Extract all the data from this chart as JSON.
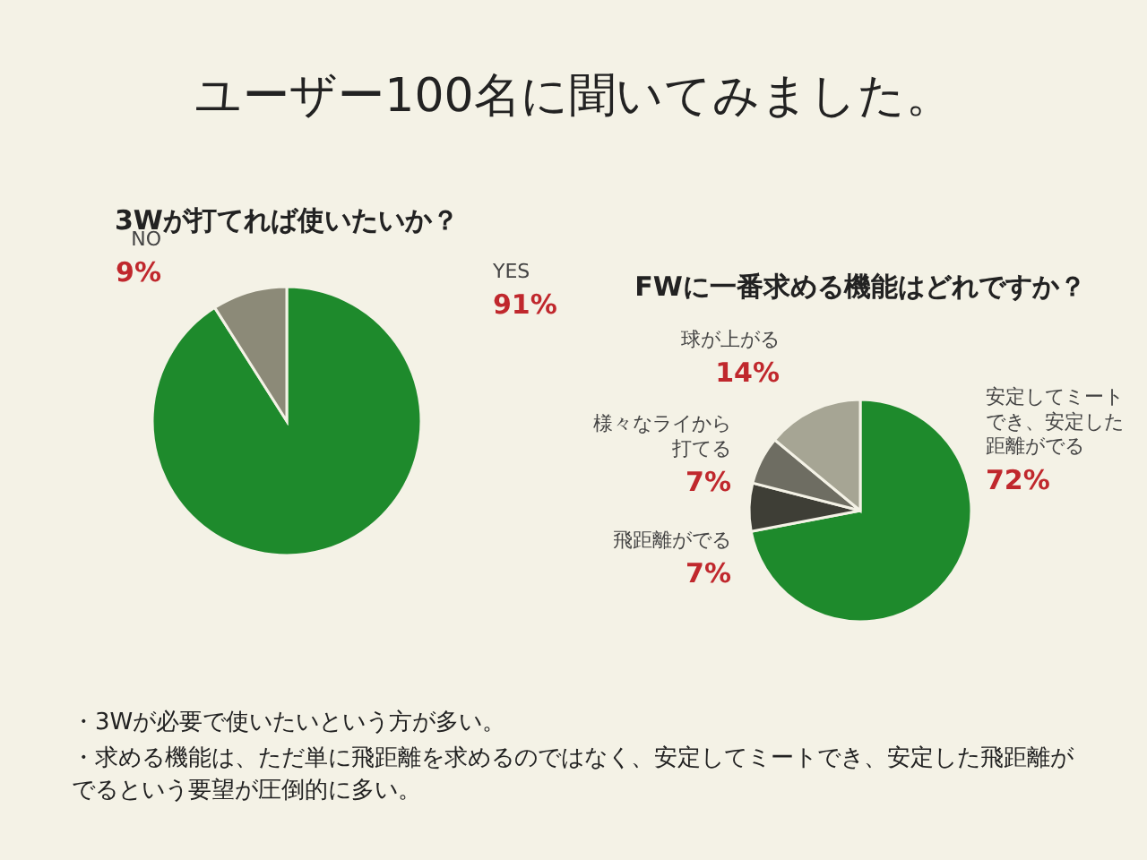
{
  "chart_data": [
    {
      "type": "other",
      "title": "ユーザー100名に聞いてみました。"
    },
    {
      "type": "pie",
      "title": "3Wが打てれば使いたいか？",
      "categories": [
        "YES",
        "NO"
      ],
      "values": [
        91,
        9
      ],
      "colors": [
        "#1e8a2c",
        "#8c8a78"
      ],
      "value_labels": [
        "91%",
        "9%"
      ]
    },
    {
      "type": "pie",
      "title": "FWに一番求める機能はどれですか？",
      "categories": [
        "安定してミートでき、安定した距離がでる",
        "飛距離がでる",
        "様々なライから打てる",
        "球が上がる"
      ],
      "values": [
        72,
        7,
        7,
        14
      ],
      "colors": [
        "#1e8a2c",
        "#3e3e36",
        "#6e6d62",
        "#a6a594"
      ],
      "value_labels": [
        "72%",
        "7%",
        "7%",
        "14%"
      ]
    },
    {
      "type": "other",
      "annotations": [
        "・3Wが必要で使いたいという方が多い。",
        "・求める機能は、ただ単に飛距離を求めるのではなく、安定してミートでき、安定した飛距離がでるという要望が圧倒的に多い。"
      ]
    }
  ]
}
